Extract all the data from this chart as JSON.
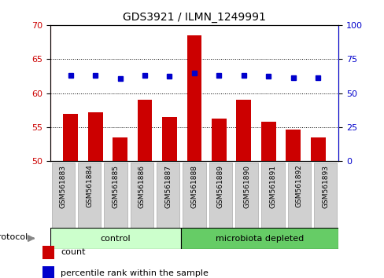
{
  "title": "GDS3921 / ILMN_1249991",
  "samples": [
    "GSM561883",
    "GSM561884",
    "GSM561885",
    "GSM561886",
    "GSM561887",
    "GSM561888",
    "GSM561889",
    "GSM561890",
    "GSM561891",
    "GSM561892",
    "GSM561893"
  ],
  "count_values": [
    57.0,
    57.2,
    53.5,
    59.0,
    56.5,
    68.5,
    56.3,
    59.0,
    55.8,
    54.7,
    53.5
  ],
  "percentile_values": [
    63.0,
    63.0,
    61.0,
    63.0,
    62.5,
    64.5,
    62.8,
    63.0,
    62.5,
    61.5,
    61.5
  ],
  "ylim_left": [
    50,
    70
  ],
  "ylim_right": [
    0,
    100
  ],
  "yticks_left": [
    50,
    55,
    60,
    65,
    70
  ],
  "yticks_right": [
    0,
    25,
    50,
    75,
    100
  ],
  "bar_color": "#cc0000",
  "dot_color": "#0000cc",
  "bar_width": 0.6,
  "group_labels": [
    "control",
    "microbiota depleted"
  ],
  "group_colors": [
    "#ccffcc",
    "#66cc66"
  ],
  "group_boundaries": [
    0,
    5,
    11
  ],
  "protocol_label": "protocol",
  "legend_items": [
    {
      "label": "count",
      "color": "#cc0000"
    },
    {
      "label": "percentile rank within the sample",
      "color": "#0000cc"
    }
  ],
  "plot_bg": "#ffffff",
  "tick_label_color_left": "#cc0000",
  "tick_label_color_right": "#0000cc",
  "tickbox_color": "#d0d0d0",
  "tickbox_edge": "#aaaaaa"
}
